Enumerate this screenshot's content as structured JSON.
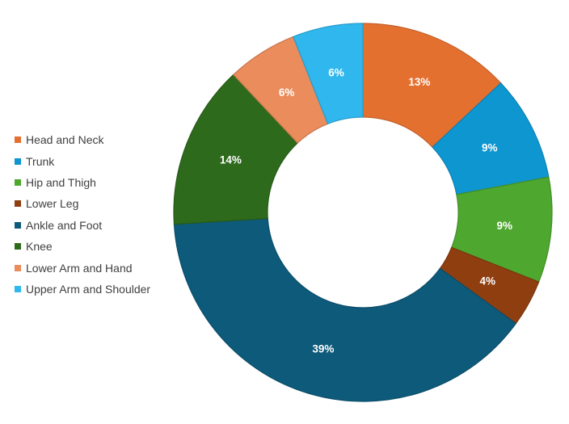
{
  "chart_data": {
    "type": "pie",
    "donut": true,
    "title": "",
    "legend_position": "left",
    "slices": [
      {
        "name": "Head and Neck",
        "value": 13,
        "label": "13%",
        "color": "#E4702F"
      },
      {
        "name": "Trunk",
        "value": 9,
        "label": "9%",
        "color": "#0E96D0"
      },
      {
        "name": "Hip and Thigh",
        "value": 9,
        "label": "9%",
        "color": "#4EA72E"
      },
      {
        "name": "Lower Leg",
        "value": 4,
        "label": "4%",
        "color": "#8F3E10"
      },
      {
        "name": "Ankle and Foot",
        "value": 39,
        "label": "39%",
        "color": "#0D5A7A"
      },
      {
        "name": "Knee",
        "value": 14,
        "label": "14%",
        "color": "#2E6A1C"
      },
      {
        "name": "Lower Arm and Hand",
        "value": 6,
        "label": "6%",
        "color": "#EA8C5C"
      },
      {
        "name": "Upper Arm and Shoulder",
        "value": 6,
        "label": "6%",
        "color": "#2FB7EE"
      }
    ]
  }
}
